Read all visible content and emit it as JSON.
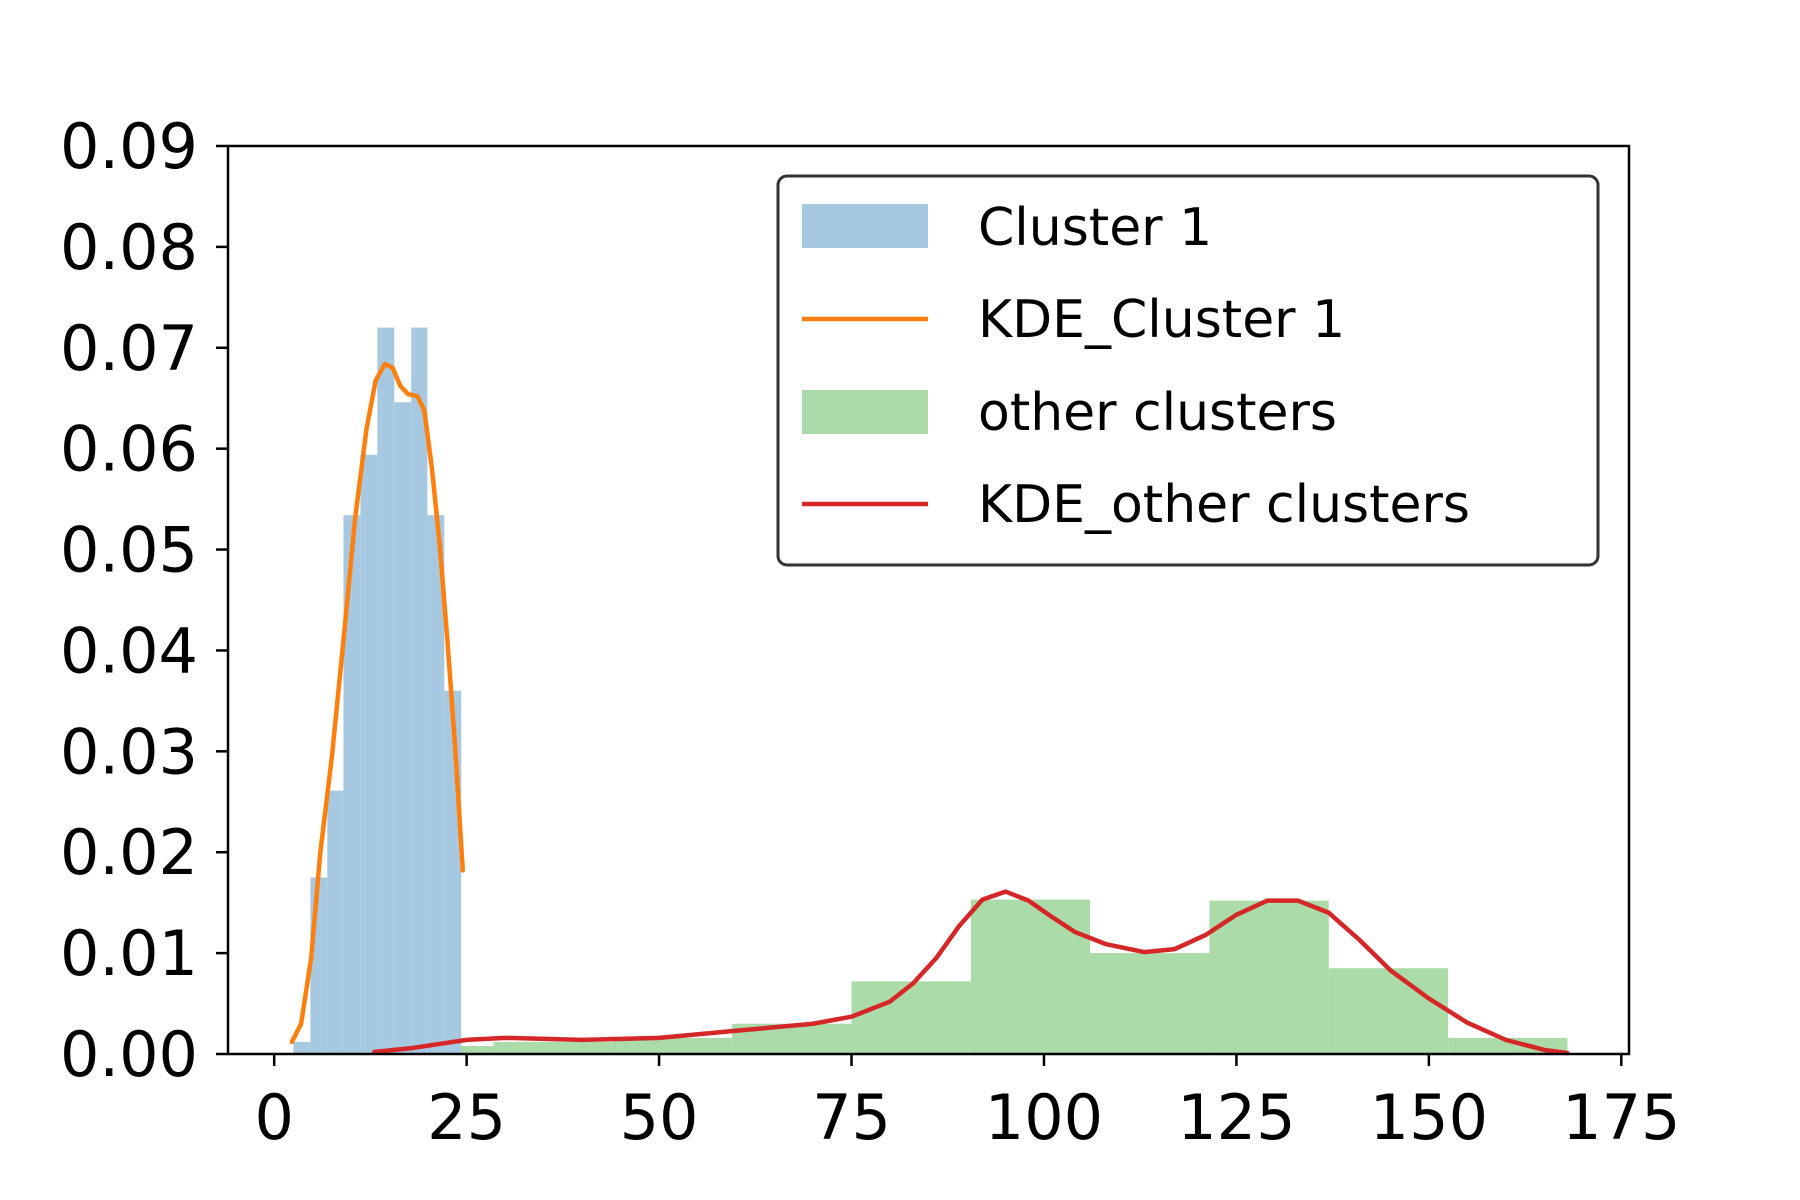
{
  "chart_data": {
    "type": "bar",
    "title": "",
    "xlabel": "",
    "ylabel": "",
    "xlim": [
      -6,
      176
    ],
    "ylim": [
      0,
      0.09
    ],
    "xticks": [
      0,
      25,
      50,
      75,
      100,
      125,
      150,
      175
    ],
    "yticks": [
      0.0,
      0.01,
      0.02,
      0.03,
      0.04,
      0.05,
      0.06,
      0.07,
      0.08,
      0.09
    ],
    "xtick_labels": [
      "0",
      "25",
      "50",
      "75",
      "100",
      "125",
      "150",
      "175"
    ],
    "ytick_labels": [
      "0.00",
      "0.01",
      "0.02",
      "0.03",
      "0.04",
      "0.05",
      "0.06",
      "0.07",
      "0.08",
      "0.09"
    ],
    "grid": false,
    "legend_position": "top-right",
    "legend": {
      "cluster_hist": "Cluster 1",
      "cluster_kde": "KDE_Cluster 1",
      "other_hist": "other clusters",
      "other_kde": "KDE_other clusters"
    },
    "colors": {
      "cluster_hist": "#a6c8e1",
      "cluster_kde": "#ff7f0e",
      "other_hist": "#abdba8",
      "other_kde": "#d62728"
    },
    "histograms": [
      {
        "name": "Cluster 1",
        "bins": [
          [
            2.5,
            4.7,
            0.0012
          ],
          [
            4.7,
            6.9,
            0.0175
          ],
          [
            6.9,
            9.0,
            0.0261
          ],
          [
            9.0,
            11.2,
            0.0534
          ],
          [
            11.2,
            13.4,
            0.0594
          ],
          [
            13.4,
            15.6,
            0.072
          ],
          [
            15.6,
            17.8,
            0.0646
          ],
          [
            17.8,
            19.9,
            0.072
          ],
          [
            19.9,
            22.1,
            0.0534
          ],
          [
            22.1,
            24.3,
            0.036
          ]
        ]
      },
      {
        "name": "other clusters",
        "bins": [
          [
            13.0,
            28.5,
            0.0008
          ],
          [
            28.5,
            44.0,
            0.0012
          ],
          [
            44.0,
            59.5,
            0.0016
          ],
          [
            59.5,
            75.0,
            0.003
          ],
          [
            75.0,
            90.5,
            0.0072
          ],
          [
            90.5,
            106.0,
            0.0153
          ],
          [
            106.0,
            121.5,
            0.01
          ],
          [
            121.5,
            137.0,
            0.0152
          ],
          [
            137.0,
            152.5,
            0.0085
          ],
          [
            152.5,
            168.0,
            0.0016
          ]
        ]
      }
    ],
    "series": [
      {
        "name": "KDE_Cluster 1",
        "points": [
          [
            2.3,
            0.0012
          ],
          [
            3.5,
            0.003
          ],
          [
            4.8,
            0.0095
          ],
          [
            6.0,
            0.02
          ],
          [
            7.5,
            0.0295
          ],
          [
            9.0,
            0.041
          ],
          [
            10.5,
            0.053
          ],
          [
            12.0,
            0.062
          ],
          [
            13.2,
            0.0668
          ],
          [
            14.4,
            0.0684
          ],
          [
            15.4,
            0.068
          ],
          [
            16.4,
            0.0662
          ],
          [
            17.4,
            0.0654
          ],
          [
            18.6,
            0.0652
          ],
          [
            19.5,
            0.0638
          ],
          [
            20.5,
            0.058
          ],
          [
            21.5,
            0.0505
          ],
          [
            22.5,
            0.041
          ],
          [
            23.5,
            0.0305
          ],
          [
            24.5,
            0.0182
          ]
        ]
      },
      {
        "name": "KDE_other clusters",
        "points": [
          [
            13.0,
            0.0002
          ],
          [
            18.0,
            0.0006
          ],
          [
            25.0,
            0.0014
          ],
          [
            30.0,
            0.0016
          ],
          [
            40.0,
            0.0014
          ],
          [
            50.0,
            0.0016
          ],
          [
            60.0,
            0.0023
          ],
          [
            70.0,
            0.003
          ],
          [
            75.0,
            0.0037
          ],
          [
            80.0,
            0.0052
          ],
          [
            83.0,
            0.007
          ],
          [
            86.0,
            0.0095
          ],
          [
            89.0,
            0.0127
          ],
          [
            92.0,
            0.0153
          ],
          [
            95.0,
            0.0161
          ],
          [
            98.0,
            0.0152
          ],
          [
            101.0,
            0.0136
          ],
          [
            104.0,
            0.0121
          ],
          [
            108.0,
            0.0109
          ],
          [
            113.0,
            0.0101
          ],
          [
            117.0,
            0.0104
          ],
          [
            121.0,
            0.0118
          ],
          [
            125.0,
            0.0138
          ],
          [
            129.0,
            0.0152
          ],
          [
            133.0,
            0.0152
          ],
          [
            137.0,
            0.014
          ],
          [
            141.0,
            0.0113
          ],
          [
            145.0,
            0.0083
          ],
          [
            150.0,
            0.0055
          ],
          [
            155.0,
            0.0031
          ],
          [
            160.0,
            0.0014
          ],
          [
            165.0,
            0.0004
          ],
          [
            168.0,
            0.0001
          ]
        ]
      }
    ]
  }
}
